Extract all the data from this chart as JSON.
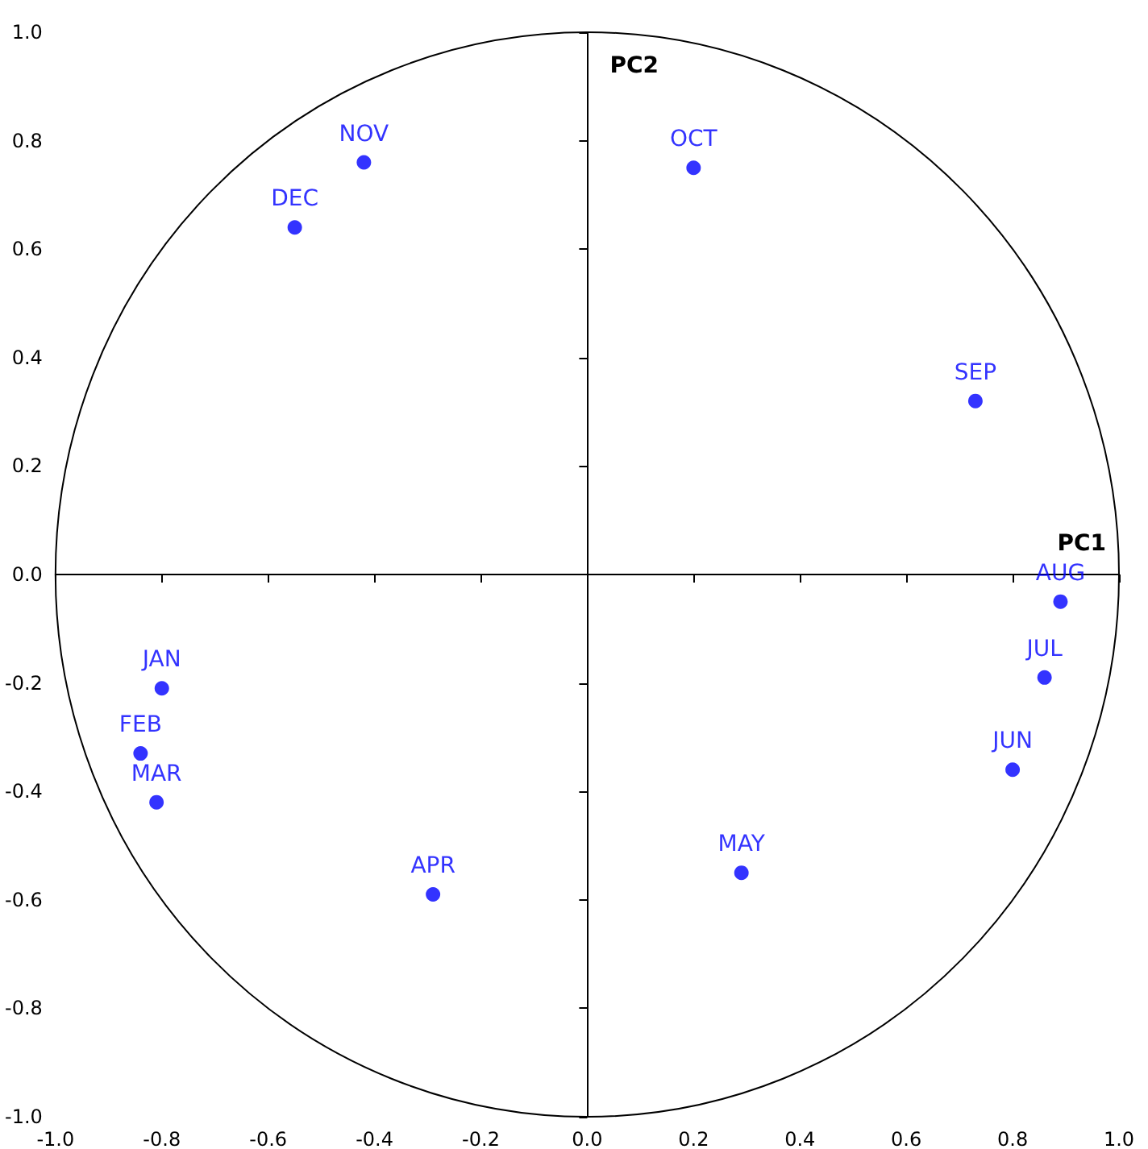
{
  "chart_data": {
    "type": "scatter",
    "xlabel": "PC1",
    "ylabel": "PC2",
    "x": [
      -0.8,
      -0.84,
      -0.81,
      -0.29,
      0.29,
      0.8,
      0.86,
      0.89,
      0.73,
      0.2,
      -0.42,
      -0.55
    ],
    "values": [
      -0.21,
      -0.33,
      -0.42,
      -0.59,
      -0.55,
      -0.36,
      -0.19,
      -0.05,
      0.32,
      0.75,
      0.76,
      0.64
    ],
    "value_labels": [
      "JAN",
      "FEB",
      "MAR",
      "APR",
      "MAY",
      "JUN",
      "JUL",
      "AUG",
      "SEP",
      "OCT",
      "NOV",
      "DEC"
    ],
    "color": "#0000ff",
    "marker": "circle",
    "xlim": [
      -1,
      1
    ],
    "ylim": [
      -1,
      1
    ],
    "xticks": [
      {
        "value": -1,
        "label": "-1.0"
      },
      {
        "value": -0.8,
        "label": "-0.8"
      },
      {
        "value": -0.6,
        "label": "-0.6"
      },
      {
        "value": -0.4,
        "label": "-0.4"
      },
      {
        "value": -0.2,
        "label": "-0.2"
      },
      {
        "value": 0,
        "label": "0.0"
      },
      {
        "value": 0.2,
        "label": "0.2"
      },
      {
        "value": 0.4,
        "label": "0.4"
      },
      {
        "value": 0.6,
        "label": "0.6"
      },
      {
        "value": 0.8,
        "label": "0.8"
      },
      {
        "value": 1,
        "label": "1.0"
      }
    ],
    "yticks": [
      {
        "value": -1,
        "label": "-1.0"
      },
      {
        "value": -0.8,
        "label": "-0.8"
      },
      {
        "value": -0.6,
        "label": "-0.6"
      },
      {
        "value": -0.4,
        "label": "-0.4"
      },
      {
        "value": -0.2,
        "label": "-0.2"
      },
      {
        "value": 0,
        "label": "0.0"
      },
      {
        "value": 0.2,
        "label": "0.2"
      },
      {
        "value": 0.4,
        "label": "0.4"
      },
      {
        "value": 0.6,
        "label": "0.6"
      },
      {
        "value": 0.8,
        "label": "0.8"
      },
      {
        "value": 1,
        "label": "1.0"
      }
    ]
  }
}
